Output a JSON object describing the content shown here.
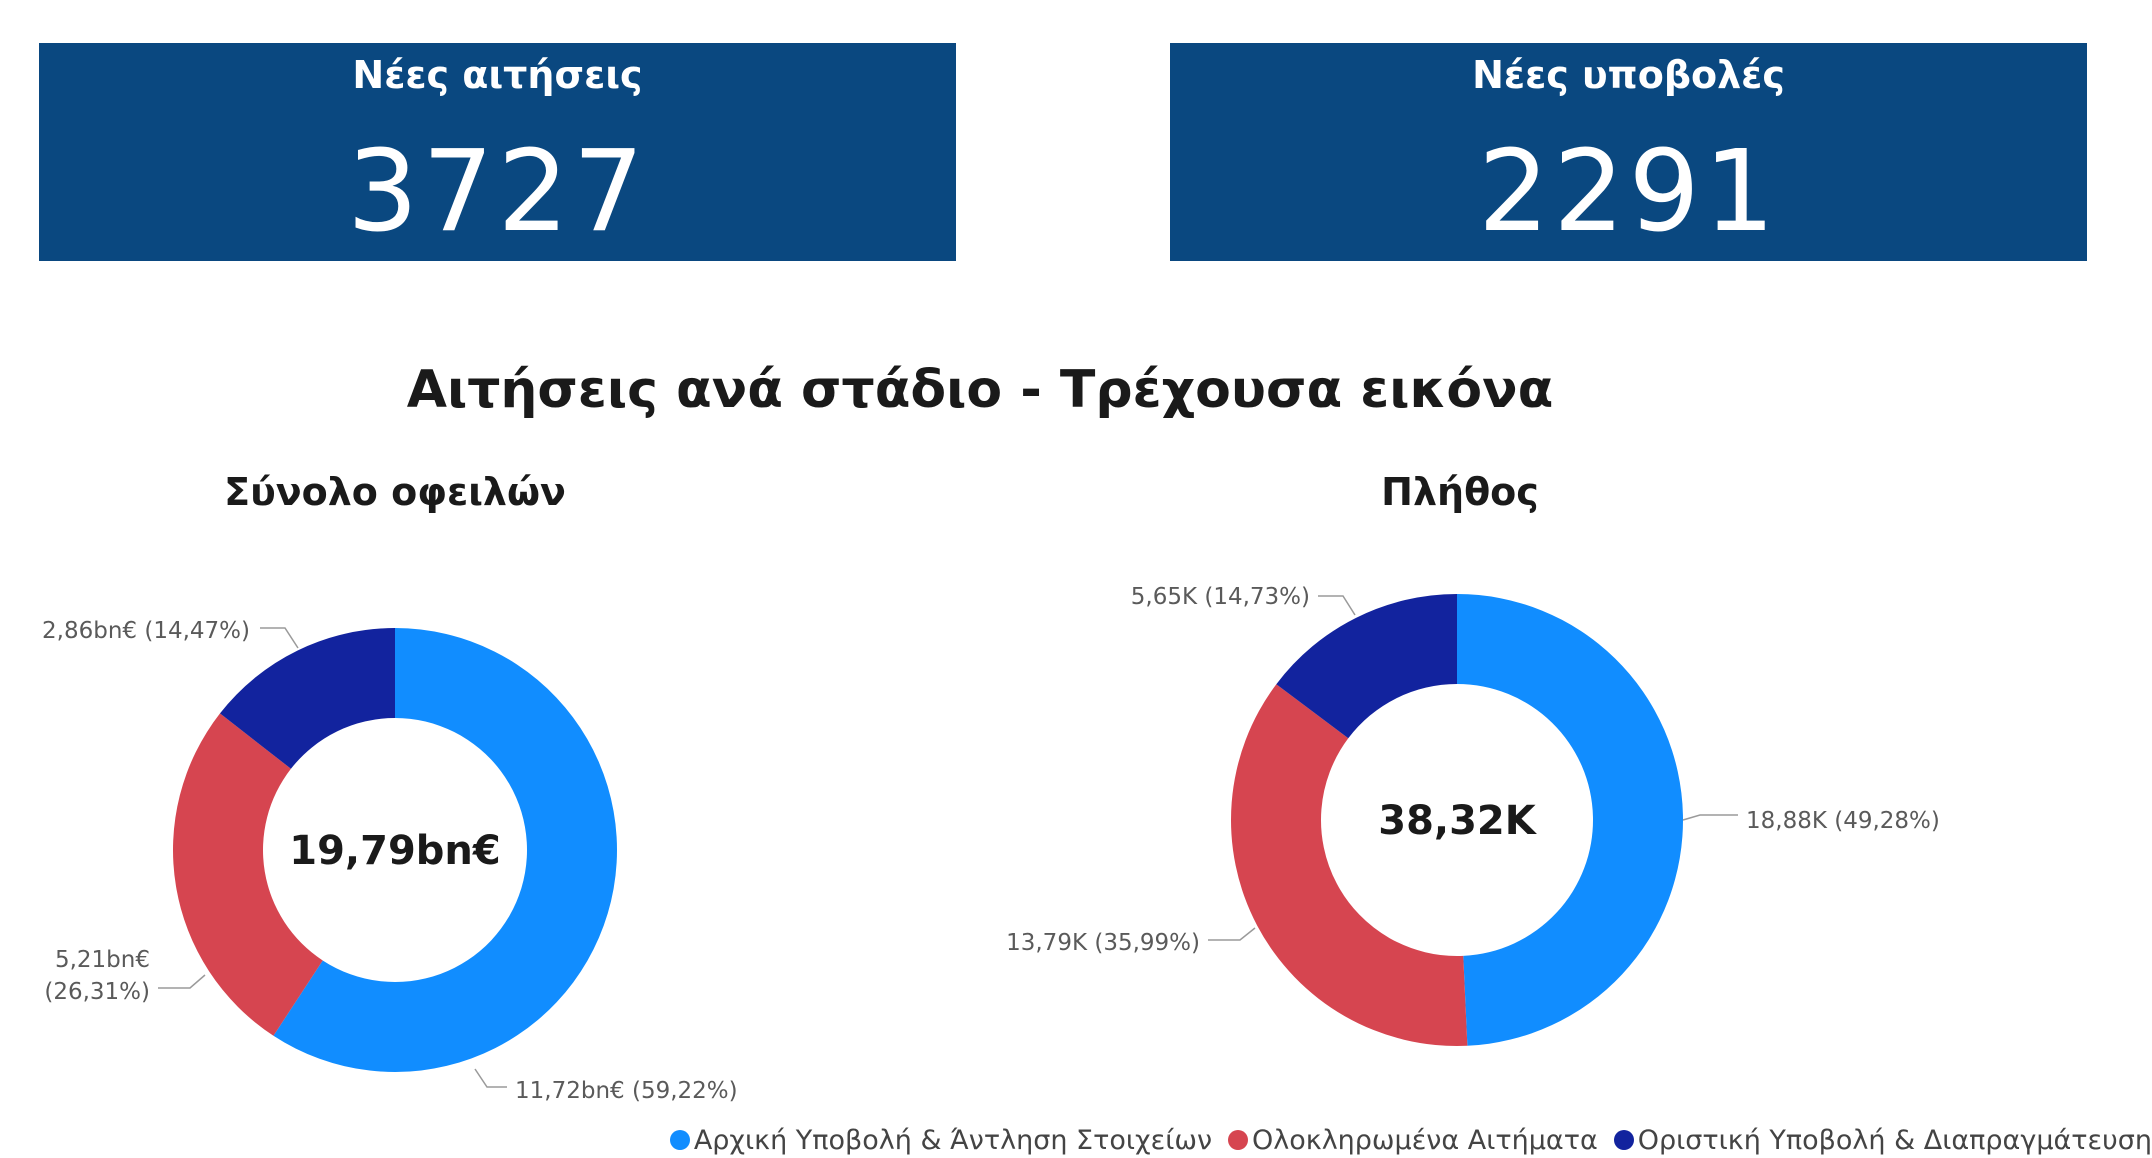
{
  "cards": [
    {
      "title": "Νέες αιτήσεις",
      "value": "3727"
    },
    {
      "title": "Νέες υποβολές",
      "value": "2291"
    }
  ],
  "page_title": "Αιτήσεις ανά στάδιο - Τρέχουσα εικόνα",
  "colors": {
    "card_bg": "#0a4880",
    "stage_1": "#118dff",
    "stage_2": "#d64550",
    "stage_3": "#12239e"
  },
  "chart_data": [
    {
      "type": "pie",
      "title": "Σύνολο οφειλών",
      "center_label": "19,79bn€",
      "categories": [
        "Αρχική Υποβολή & Άντληση Στοιχείων",
        "Ολοκληρωμένα Αιτήματα",
        "Οριστική Υποβολή & Διαπραγμάτευση"
      ],
      "values": [
        11.72,
        5.21,
        2.86
      ],
      "percent": [
        59.22,
        26.31,
        14.47
      ],
      "data_labels": [
        [
          "11,72bn€ (59,22%)"
        ],
        [
          "5,21bn€",
          "(26,31%)"
        ],
        [
          "2,86bn€ (14,47%)"
        ]
      ]
    },
    {
      "type": "pie",
      "title": "Πλήθος",
      "center_label": "38,32K",
      "categories": [
        "Αρχική Υποβολή & Άντληση Στοιχείων",
        "Ολοκληρωμένα Αιτήματα",
        "Οριστική Υποβολή & Διαπραγμάτευση"
      ],
      "values": [
        18.88,
        13.79,
        5.65
      ],
      "percent": [
        49.28,
        35.99,
        14.73
      ],
      "data_labels": [
        [
          "18,88K (49,28%)"
        ],
        [
          "13,79K (35,99%)"
        ],
        [
          "5,65K (14,73%)"
        ]
      ]
    }
  ],
  "legend": [
    {
      "label": "Αρχική Υποβολή & Άντληση Στοιχείων"
    },
    {
      "label": "Ολοκληρωμένα Αιτήματα"
    },
    {
      "label": "Οριστική Υποβολή & Διαπραγμάτευση"
    }
  ]
}
